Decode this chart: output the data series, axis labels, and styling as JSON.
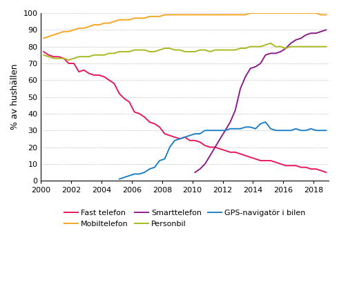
{
  "title": "",
  "ylabel": "% av hushällen",
  "xlim": [
    2000,
    2019
  ],
  "ylim": [
    0,
    100
  ],
  "yticks": [
    0,
    10,
    20,
    30,
    40,
    50,
    60,
    70,
    80,
    90,
    100
  ],
  "xticks": [
    2000,
    2002,
    2004,
    2006,
    2008,
    2010,
    2012,
    2014,
    2016,
    2018
  ],
  "fast_telefon": {
    "label": "Fast telefon",
    "color": "#e8175d",
    "x": [
      2000.17,
      2000.5,
      2000.83,
      2001.17,
      2001.5,
      2001.83,
      2002.17,
      2002.5,
      2002.83,
      2003.17,
      2003.5,
      2003.83,
      2004.17,
      2004.5,
      2004.83,
      2005.17,
      2005.5,
      2005.83,
      2006.17,
      2006.5,
      2006.83,
      2007.17,
      2007.5,
      2007.83,
      2008.17,
      2008.5,
      2008.83,
      2009.17,
      2009.5,
      2009.83,
      2010.17,
      2010.5,
      2010.83,
      2011.17,
      2011.5,
      2011.83,
      2012.17,
      2012.5,
      2012.83,
      2013.17,
      2013.5,
      2013.83,
      2014.17,
      2014.5,
      2014.83,
      2015.17,
      2015.5,
      2015.83,
      2016.17,
      2016.5,
      2016.83,
      2017.17,
      2017.5,
      2017.83,
      2018.17,
      2018.5,
      2018.83
    ],
    "y": [
      77,
      75,
      74,
      74,
      73,
      70,
      70,
      65,
      66,
      64,
      63,
      63,
      62,
      60,
      58,
      52,
      49,
      47,
      41,
      40,
      38,
      35,
      34,
      32,
      28,
      27,
      26,
      25,
      26,
      24,
      24,
      23,
      21,
      20,
      20,
      19,
      18,
      17,
      17,
      16,
      15,
      14,
      13,
      12,
      12,
      12,
      11,
      10,
      9,
      9,
      9,
      8,
      8,
      7,
      7,
      6,
      5
    ]
  },
  "mobiltelefon": {
    "label": "Mobiltelefon",
    "color": "#f5a623",
    "x": [
      2000.17,
      2000.5,
      2000.83,
      2001.17,
      2001.5,
      2001.83,
      2002.17,
      2002.5,
      2002.83,
      2003.17,
      2003.5,
      2003.83,
      2004.17,
      2004.5,
      2004.83,
      2005.17,
      2005.5,
      2005.83,
      2006.17,
      2006.5,
      2006.83,
      2007.17,
      2007.5,
      2007.83,
      2008.17,
      2008.5,
      2008.83,
      2009.17,
      2009.5,
      2009.83,
      2010.17,
      2010.5,
      2010.83,
      2011.17,
      2011.5,
      2011.83,
      2012.17,
      2012.5,
      2012.83,
      2013.17,
      2013.5,
      2013.83,
      2014.17,
      2014.5,
      2014.83,
      2015.17,
      2015.5,
      2015.83,
      2016.17,
      2016.5,
      2016.83,
      2017.17,
      2017.5,
      2017.83,
      2018.17,
      2018.5,
      2018.83
    ],
    "y": [
      85,
      86,
      87,
      88,
      89,
      89,
      90,
      91,
      91,
      92,
      93,
      93,
      94,
      94,
      95,
      96,
      96,
      96,
      97,
      97,
      97,
      98,
      98,
      98,
      99,
      99,
      99,
      99,
      99,
      99,
      99,
      99,
      99,
      99,
      99,
      99,
      99,
      99,
      99,
      99,
      99,
      100,
      100,
      100,
      100,
      100,
      100,
      100,
      100,
      100,
      100,
      100,
      100,
      100,
      100,
      99,
      99
    ]
  },
  "smarttelefon": {
    "label": "Smarttelefon",
    "color": "#8b1a8b",
    "x": [
      2010.17,
      2010.5,
      2010.83,
      2011.17,
      2011.5,
      2011.83,
      2012.17,
      2012.5,
      2012.83,
      2013.17,
      2013.5,
      2013.83,
      2014.17,
      2014.5,
      2014.83,
      2015.17,
      2015.5,
      2015.83,
      2016.17,
      2016.5,
      2016.83,
      2017.17,
      2017.5,
      2017.83,
      2018.17,
      2018.5,
      2018.83
    ],
    "y": [
      5,
      7,
      10,
      15,
      20,
      25,
      30,
      35,
      42,
      55,
      62,
      67,
      68,
      70,
      75,
      76,
      76,
      77,
      79,
      82,
      84,
      85,
      87,
      88,
      88,
      89,
      90
    ]
  },
  "personbil": {
    "label": "Personbil",
    "color": "#aab820",
    "x": [
      2000.17,
      2000.5,
      2000.83,
      2001.17,
      2001.5,
      2001.83,
      2002.17,
      2002.5,
      2002.83,
      2003.17,
      2003.5,
      2003.83,
      2004.17,
      2004.5,
      2004.83,
      2005.17,
      2005.5,
      2005.83,
      2006.17,
      2006.5,
      2006.83,
      2007.17,
      2007.5,
      2007.83,
      2008.17,
      2008.5,
      2008.83,
      2009.17,
      2009.5,
      2009.83,
      2010.17,
      2010.5,
      2010.83,
      2011.17,
      2011.5,
      2011.83,
      2012.17,
      2012.5,
      2012.83,
      2013.17,
      2013.5,
      2013.83,
      2014.17,
      2014.5,
      2014.83,
      2015.17,
      2015.5,
      2015.83,
      2016.17,
      2016.5,
      2016.83,
      2017.17,
      2017.5,
      2017.83,
      2018.17,
      2018.5,
      2018.83
    ],
    "y": [
      75,
      74,
      73,
      73,
      73,
      72,
      73,
      74,
      74,
      74,
      75,
      75,
      75,
      76,
      76,
      77,
      77,
      77,
      78,
      78,
      78,
      77,
      77,
      78,
      79,
      79,
      78,
      78,
      77,
      77,
      77,
      78,
      78,
      77,
      78,
      78,
      78,
      78,
      78,
      79,
      79,
      80,
      80,
      80,
      81,
      82,
      80,
      80,
      79,
      80,
      80,
      80,
      80,
      80,
      80,
      80,
      80
    ]
  },
  "gps": {
    "label": "GPS-navigatör i bilen",
    "color": "#1e7fc7",
    "x": [
      2005.17,
      2005.5,
      2005.83,
      2006.17,
      2006.5,
      2006.83,
      2007.17,
      2007.5,
      2007.83,
      2008.17,
      2008.5,
      2008.83,
      2009.17,
      2009.5,
      2009.83,
      2010.17,
      2010.5,
      2010.83,
      2011.17,
      2011.5,
      2011.83,
      2012.17,
      2012.5,
      2012.83,
      2013.17,
      2013.5,
      2013.83,
      2014.17,
      2014.5,
      2014.83,
      2015.17,
      2015.5,
      2015.83,
      2016.17,
      2016.5,
      2016.83,
      2017.17,
      2017.5,
      2017.83,
      2018.17,
      2018.5,
      2018.83
    ],
    "y": [
      1,
      2,
      3,
      4,
      4,
      5,
      7,
      8,
      12,
      13,
      20,
      24,
      25,
      26,
      27,
      28,
      28,
      30,
      30,
      30,
      30,
      30,
      31,
      31,
      31,
      32,
      32,
      31,
      34,
      35,
      31,
      30,
      30,
      30,
      30,
      31,
      30,
      30,
      31,
      30,
      30,
      30
    ]
  },
  "background_color": "#ffffff",
  "grid_color": "#c8c8c8",
  "linewidth": 1.4,
  "legend_order": [
    0,
    1,
    2,
    3,
    4
  ],
  "legend_labels": [
    "Fast telefon",
    "Mobiltelefon",
    "Smarttelefon",
    "Personbil",
    "GPS-navigatör i bilen"
  ]
}
